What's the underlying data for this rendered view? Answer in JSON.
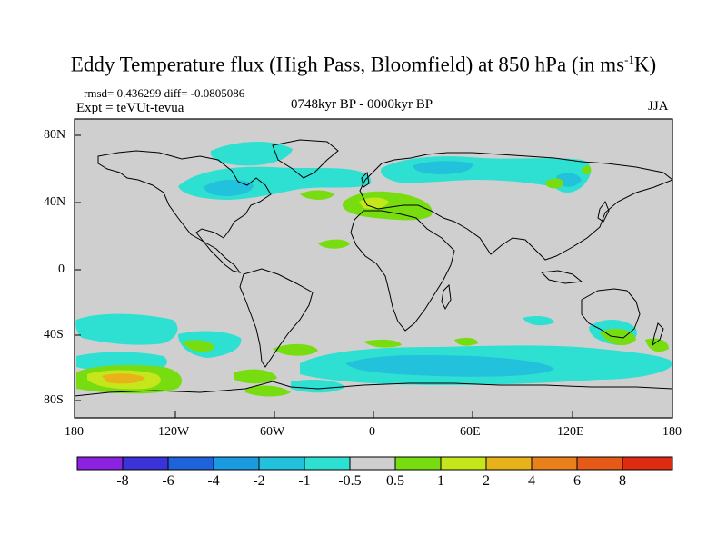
{
  "header": {
    "title_main": "Eddy Temperature flux (High Pass, Bloomfield) at 850 hPa (in ms",
    "title_sup": "-1",
    "title_end": "K)",
    "stats": "rmsd= 0.436299 diff= -0.0805086",
    "expt": "Expt = teVUt-tevua",
    "period": "0748kyr BP - 0000kyr BP",
    "season": "JJA"
  },
  "axes": {
    "lat_labels": [
      "80N",
      "40N",
      "0",
      "40S",
      "80S"
    ],
    "lon_labels": [
      "180",
      "120W",
      "60W",
      "0",
      "60E",
      "120E",
      "180"
    ]
  },
  "colorbar": {
    "labels": [
      "-8",
      "-6",
      "-4",
      "-2",
      "-1",
      "-0.5",
      "0.5",
      "1",
      "2",
      "4",
      "6",
      "8"
    ],
    "colors": [
      "#8a22e0",
      "#3a33d9",
      "#1f63dc",
      "#1a9ae0",
      "#22c1dc",
      "#2ee0d2",
      "#cfcfcf",
      "#78dd10",
      "#c4e61a",
      "#e8b21a",
      "#e8801c",
      "#e65a18",
      "#dd2c12"
    ]
  },
  "map_colors": {
    "background": "#cfcfcf",
    "neg_light": "#2ee0d2",
    "neg_med": "#22c1dc",
    "neg_strong": "#1a9ae0",
    "pos_light": "#78dd10",
    "pos_med": "#c4e61a",
    "pos_strong": "#e8b21a",
    "pos_stronger": "#e8801c"
  }
}
